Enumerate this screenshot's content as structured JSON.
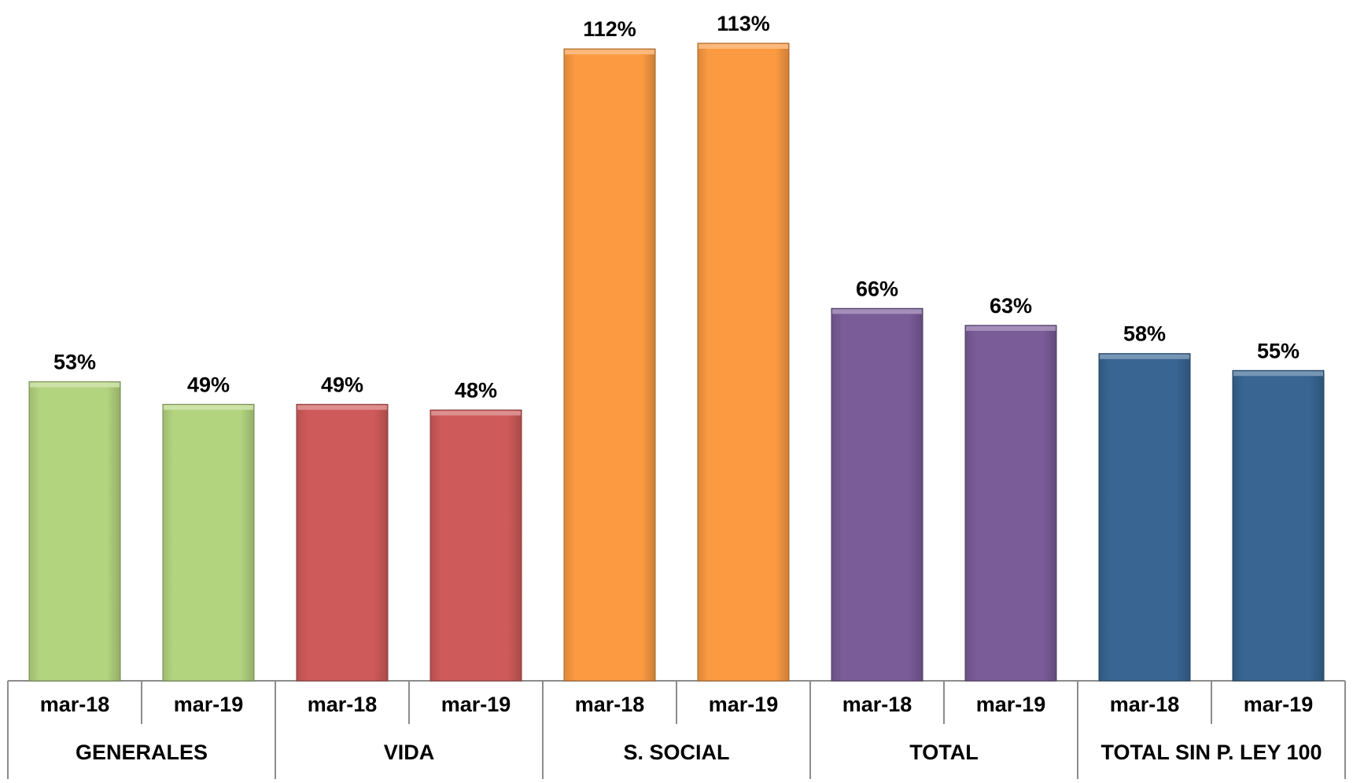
{
  "chart_data": {
    "type": "bar",
    "groups": [
      {
        "name": "GENERALES",
        "color": "#b3d47f",
        "x_labels": [
          "mar-18",
          "mar-19"
        ],
        "values": [
          53,
          49
        ],
        "labels": [
          "53%",
          "49%"
        ]
      },
      {
        "name": "VIDA",
        "color": "#cf5a5a",
        "x_labels": [
          "mar-18",
          "mar-19"
        ],
        "values": [
          49,
          48
        ],
        "labels": [
          "49%",
          "48%"
        ]
      },
      {
        "name": "S. SOCIAL",
        "color": "#fb9a41",
        "x_labels": [
          "mar-18",
          "mar-19"
        ],
        "values": [
          112,
          113
        ],
        "labels": [
          "112%",
          "113%"
        ]
      },
      {
        "name": "TOTAL",
        "color": "#7a5c98",
        "x_labels": [
          "mar-18",
          "mar-19"
        ],
        "values": [
          66,
          63
        ],
        "labels": [
          "66%",
          "63%"
        ]
      },
      {
        "name": "TOTAL SIN P. LEY 100",
        "color": "#386592",
        "x_labels": [
          "mar-18",
          "mar-19"
        ],
        "values": [
          58,
          55
        ],
        "labels": [
          "58%",
          "55%"
        ]
      }
    ],
    "value_unit": "%",
    "ylim": [
      0,
      120
    ],
    "grid": false,
    "legend": "none"
  }
}
